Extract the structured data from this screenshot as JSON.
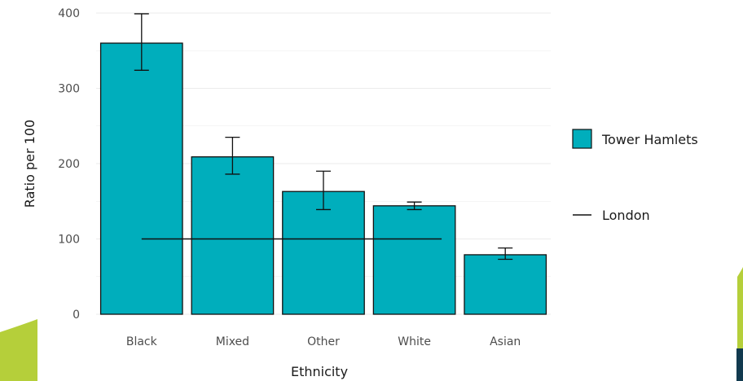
{
  "chart_data": {
    "type": "bar",
    "categories": [
      "Black",
      "Mixed",
      "Other",
      "White",
      "Asian"
    ],
    "series": [
      {
        "name": "Tower Hamlets",
        "values": [
          360,
          209,
          163,
          144,
          79
        ],
        "error_low": [
          324,
          186,
          139,
          139,
          73
        ],
        "error_high": [
          399,
          235,
          190,
          149,
          88
        ]
      }
    ],
    "reference_line": {
      "name": "London",
      "value": 100
    },
    "xlabel": "Ethnicity",
    "ylabel": "Ratio per 100",
    "ylim": [
      0,
      400
    ],
    "yticks": [
      0,
      100,
      200,
      300,
      400
    ],
    "grid": true,
    "legend_position": "right"
  },
  "colors": {
    "bar_fill": "#00AEBC",
    "bar_stroke": "#111111",
    "gridline": "#ebebeb",
    "accent_green": "#b5cf3a",
    "accent_navy": "#123a4f"
  }
}
